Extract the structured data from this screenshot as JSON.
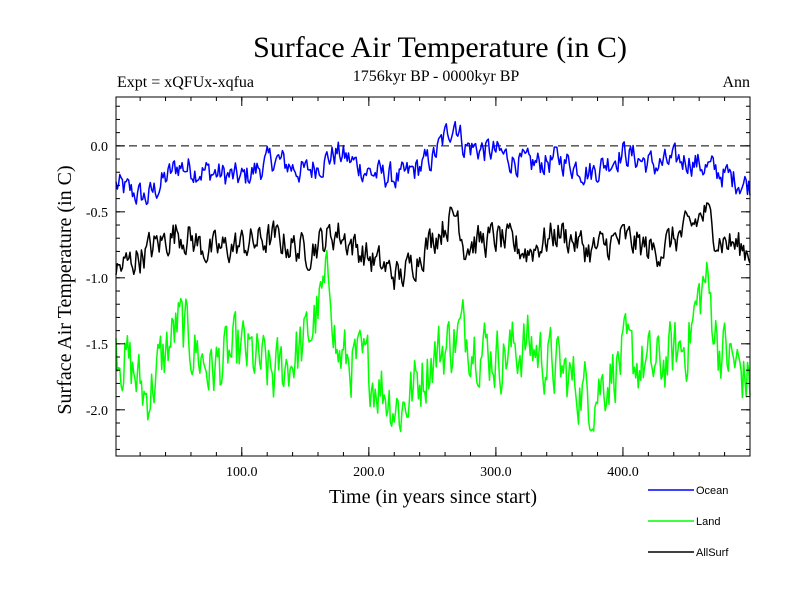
{
  "chart_data": {
    "type": "line",
    "title": "Surface Air Temperature (in C)",
    "subtitle": "1756kyr BP - 0000kyr BP",
    "experiment_label": "Expt = xQFUx-xqfua",
    "season_label": "Ann",
    "xlabel": "Time (in years since start)",
    "ylabel": "Surface Air Temperature (in C)",
    "xlim": [
      1,
      500
    ],
    "ylim": [
      -2.35,
      0.37
    ],
    "x_ticks": [
      100,
      200,
      300,
      400
    ],
    "x_tick_labels": [
      "100.0",
      "200.0",
      "300.0",
      "400.0"
    ],
    "y_ticks": [
      0.0,
      -0.5,
      -1.0,
      -1.5,
      -2.0
    ],
    "y_tick_labels": [
      "0.0",
      "-0.5",
      "-1.0",
      "-1.5",
      "-2.0"
    ],
    "reference_line": 0.0,
    "legend_position": "bottom-right",
    "series": [
      {
        "name": "Ocean",
        "color": "#0000ff",
        "x": [
          1,
          25,
          50,
          75,
          100,
          125,
          150,
          175,
          200,
          225,
          250,
          268,
          275,
          300,
          325,
          350,
          375,
          400,
          425,
          450,
          475,
          500
        ],
        "values": [
          -0.3,
          -0.4,
          -0.15,
          -0.2,
          -0.25,
          -0.1,
          -0.2,
          -0.05,
          -0.2,
          -0.25,
          -0.1,
          0.2,
          0.0,
          -0.05,
          -0.15,
          -0.1,
          -0.2,
          -0.05,
          -0.15,
          -0.1,
          -0.2,
          -0.3
        ]
      },
      {
        "name": "Land",
        "color": "#00ff00",
        "x": [
          1,
          25,
          50,
          75,
          100,
          125,
          150,
          170,
          175,
          200,
          225,
          250,
          275,
          300,
          325,
          350,
          375,
          400,
          425,
          450,
          465,
          475,
          500
        ],
        "values": [
          -1.5,
          -1.9,
          -1.35,
          -1.7,
          -1.55,
          -1.75,
          -1.5,
          -1.0,
          -1.6,
          -1.7,
          -2.0,
          -1.6,
          -1.4,
          -1.6,
          -1.5,
          -1.7,
          -1.9,
          -1.6,
          -1.7,
          -1.5,
          -1.0,
          -1.5,
          -1.8
        ]
      },
      {
        "name": "AllSurf",
        "color": "#000000",
        "x": [
          1,
          25,
          50,
          75,
          100,
          125,
          150,
          175,
          200,
          225,
          250,
          270,
          275,
          300,
          325,
          350,
          375,
          400,
          425,
          450,
          465,
          475,
          500
        ],
        "values": [
          -0.95,
          -0.8,
          -0.65,
          -0.8,
          -0.75,
          -0.7,
          -0.8,
          -0.65,
          -0.85,
          -1.0,
          -0.7,
          -0.5,
          -0.75,
          -0.7,
          -0.8,
          -0.65,
          -0.8,
          -0.7,
          -0.8,
          -0.65,
          -0.5,
          -0.7,
          -0.8
        ]
      }
    ]
  }
}
